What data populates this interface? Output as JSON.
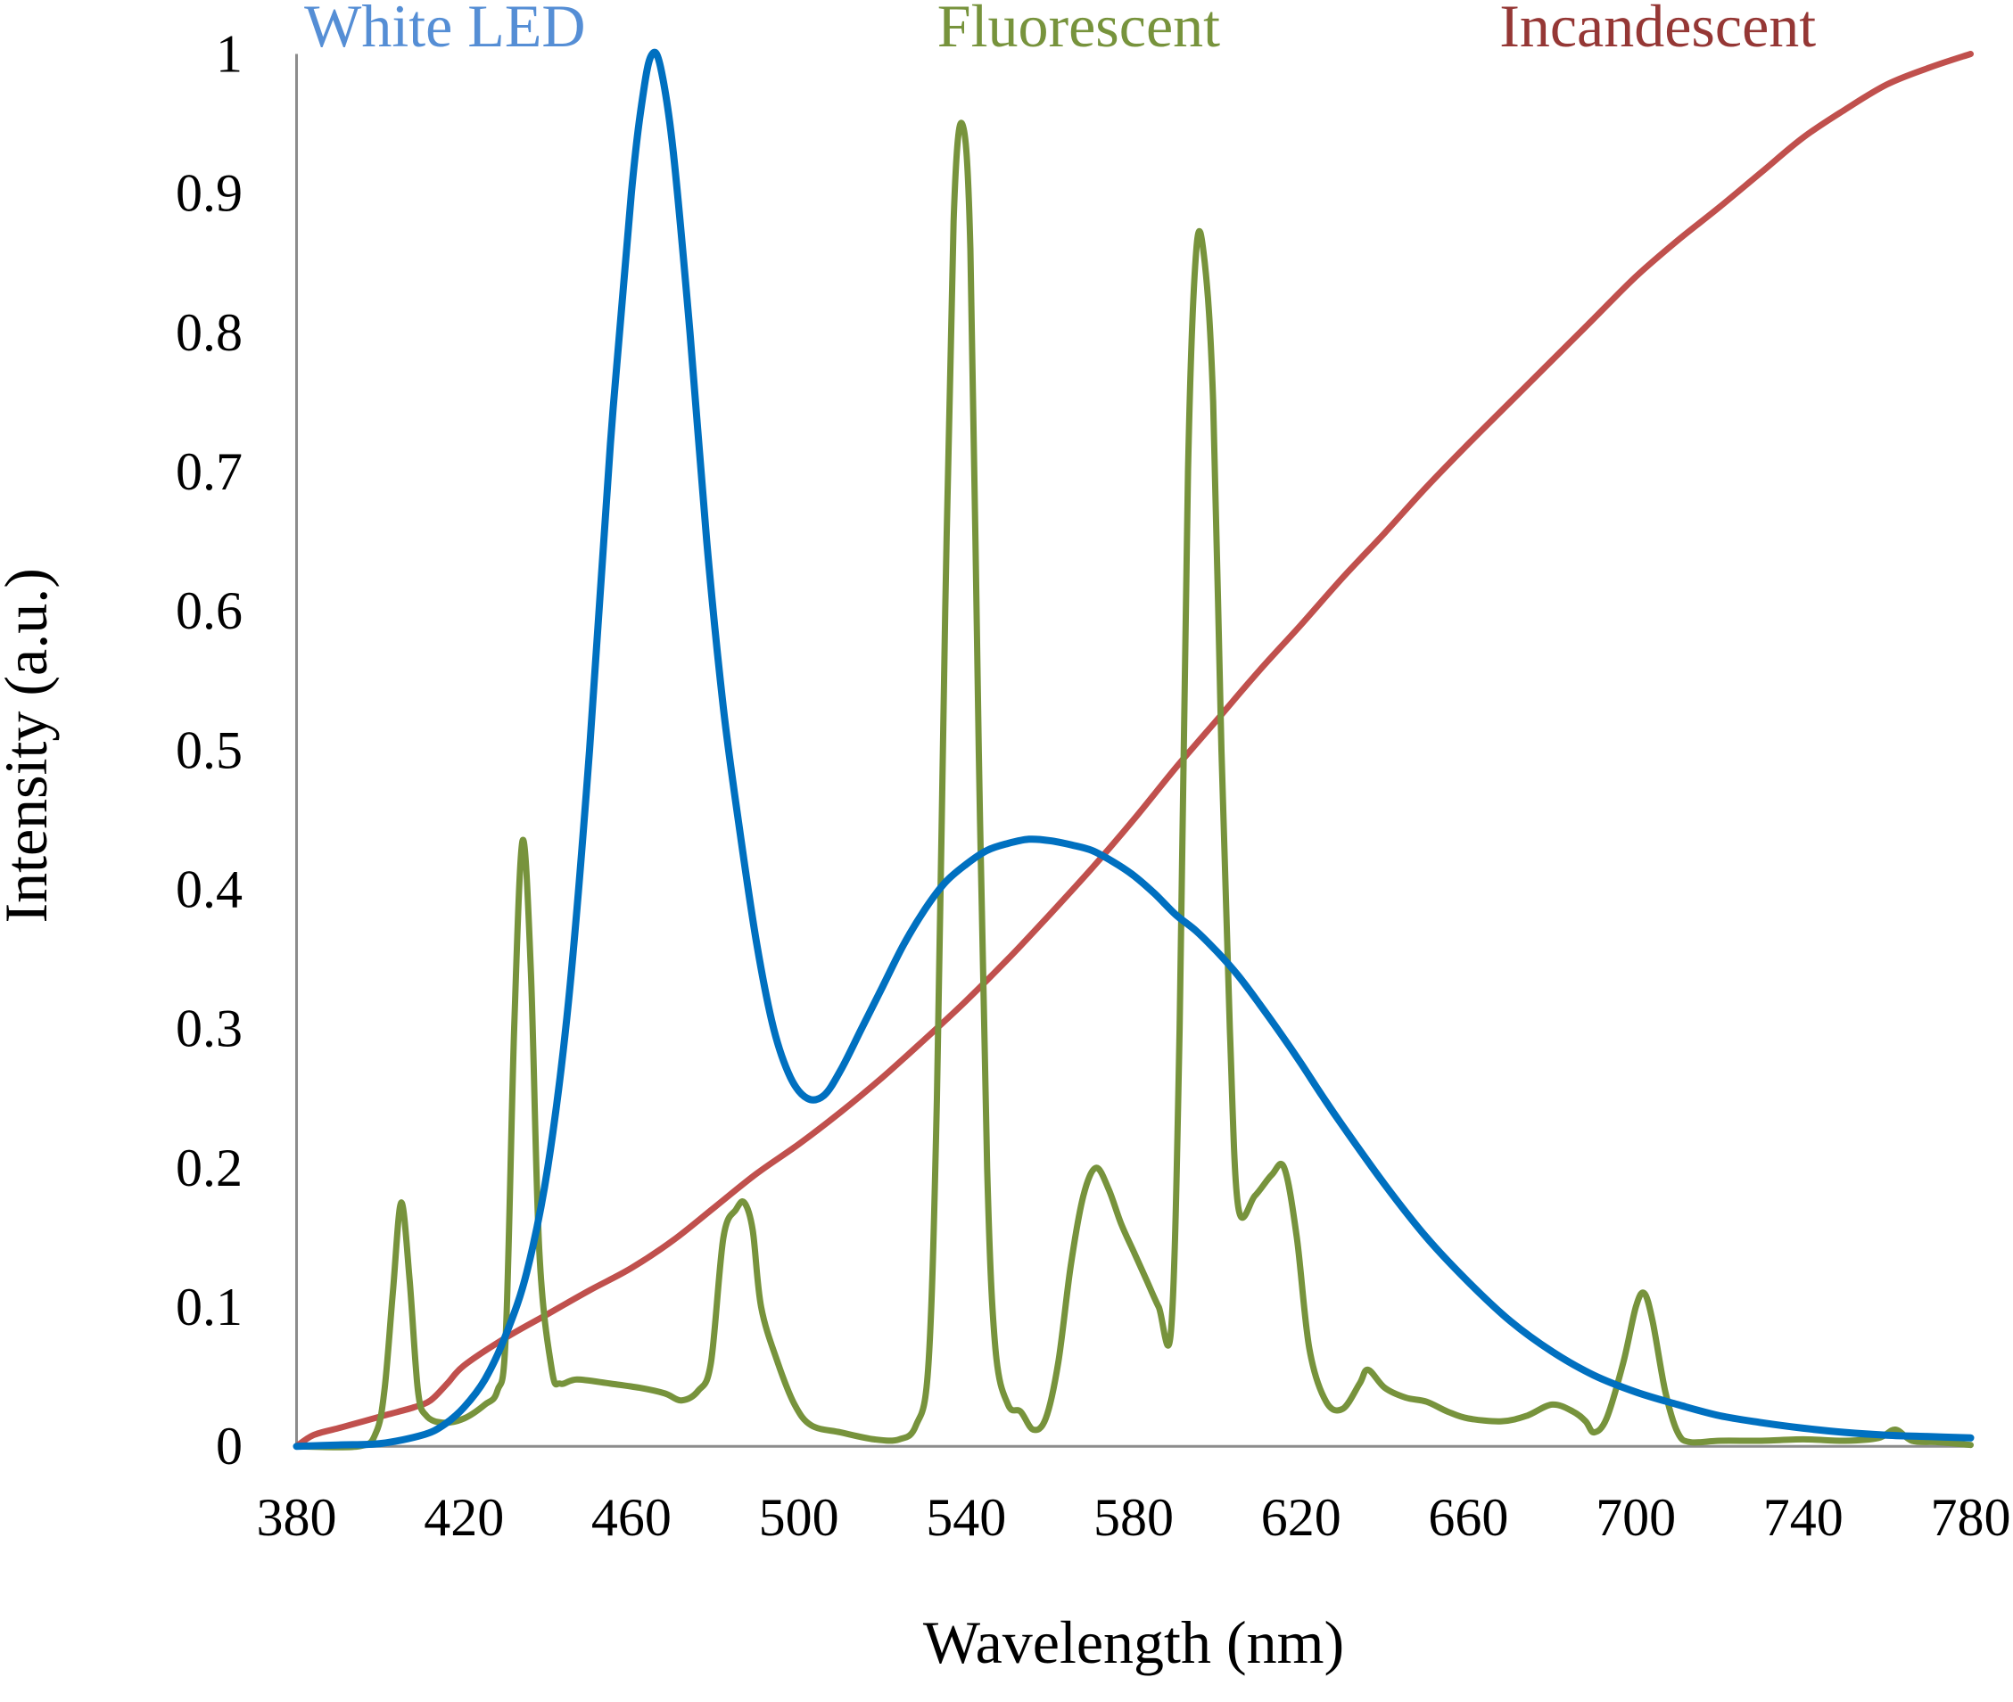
{
  "chart_data": {
    "type": "line",
    "title": "",
    "xlabel": "Wavelength (nm)",
    "ylabel": "Intensity (a.u.)",
    "xlim": [
      380,
      780
    ],
    "ylim": [
      0,
      1
    ],
    "x_ticks": [
      "380",
      "420",
      "460",
      "500",
      "540",
      "580",
      "620",
      "660",
      "700",
      "740",
      "780"
    ],
    "y_ticks": [
      "0",
      "0.1",
      "0.2",
      "0.3",
      "0.4",
      "0.5",
      "0.6",
      "0.7",
      "0.8",
      "0.9",
      "1"
    ],
    "grid": false,
    "legend_placement": "top (inline labels above plot)",
    "series": [
      {
        "name": "White LED",
        "color": "#0070C0",
        "label_color": "#558ED5",
        "points": [
          [
            380,
            0
          ],
          [
            390,
            0.001
          ],
          [
            400,
            0.002
          ],
          [
            410,
            0.008
          ],
          [
            415,
            0.015
          ],
          [
            420,
            0.028
          ],
          [
            425,
            0.048
          ],
          [
            430,
            0.08
          ],
          [
            435,
            0.125
          ],
          [
            440,
            0.2
          ],
          [
            445,
            0.32
          ],
          [
            450,
            0.5
          ],
          [
            455,
            0.72
          ],
          [
            460,
            0.9
          ],
          [
            463,
            0.975
          ],
          [
            465,
            1.0
          ],
          [
            467,
            0.99
          ],
          [
            470,
            0.93
          ],
          [
            474,
            0.8
          ],
          [
            478,
            0.65
          ],
          [
            482,
            0.53
          ],
          [
            486,
            0.44
          ],
          [
            490,
            0.36
          ],
          [
            494,
            0.3
          ],
          [
            498,
            0.265
          ],
          [
            502,
            0.25
          ],
          [
            506,
            0.252
          ],
          [
            510,
            0.27
          ],
          [
            515,
            0.3
          ],
          [
            520,
            0.33
          ],
          [
            525,
            0.36
          ],
          [
            530,
            0.385
          ],
          [
            535,
            0.405
          ],
          [
            540,
            0.418
          ],
          [
            545,
            0.428
          ],
          [
            550,
            0.433
          ],
          [
            555,
            0.436
          ],
          [
            560,
            0.435
          ],
          [
            565,
            0.432
          ],
          [
            570,
            0.428
          ],
          [
            575,
            0.42
          ],
          [
            580,
            0.41
          ],
          [
            585,
            0.397
          ],
          [
            590,
            0.382
          ],
          [
            595,
            0.37
          ],
          [
            600,
            0.355
          ],
          [
            605,
            0.338
          ],
          [
            610,
            0.318
          ],
          [
            615,
            0.297
          ],
          [
            620,
            0.275
          ],
          [
            625,
            0.252
          ],
          [
            630,
            0.23
          ],
          [
            640,
            0.188
          ],
          [
            650,
            0.15
          ],
          [
            660,
            0.118
          ],
          [
            670,
            0.09
          ],
          [
            680,
            0.068
          ],
          [
            690,
            0.051
          ],
          [
            700,
            0.039
          ],
          [
            710,
            0.03
          ],
          [
            720,
            0.022
          ],
          [
            730,
            0.017
          ],
          [
            740,
            0.013
          ],
          [
            750,
            0.01
          ],
          [
            760,
            0.008
          ],
          [
            770,
            0.007
          ],
          [
            780,
            0.006
          ]
        ]
      },
      {
        "name": "Fluorescent",
        "color": "#77933C",
        "label_color": "#77933C",
        "points": [
          [
            380,
            0
          ],
          [
            395,
            0
          ],
          [
            399,
            0.01
          ],
          [
            401,
            0.04
          ],
          [
            403,
            0.11
          ],
          [
            405,
            0.175
          ],
          [
            407,
            0.12
          ],
          [
            409,
            0.04
          ],
          [
            411,
            0.022
          ],
          [
            415,
            0.017
          ],
          [
            420,
            0.02
          ],
          [
            425,
            0.03
          ],
          [
            428,
            0.04
          ],
          [
            430,
            0.08
          ],
          [
            432,
            0.3
          ],
          [
            434,
            0.435
          ],
          [
            436,
            0.34
          ],
          [
            438,
            0.14
          ],
          [
            441,
            0.055
          ],
          [
            443,
            0.045
          ],
          [
            447,
            0.048
          ],
          [
            455,
            0.045
          ],
          [
            462,
            0.042
          ],
          [
            468,
            0.038
          ],
          [
            472,
            0.033
          ],
          [
            476,
            0.04
          ],
          [
            479,
            0.06
          ],
          [
            482,
            0.15
          ],
          [
            485,
            0.17
          ],
          [
            487,
            0.175
          ],
          [
            489,
            0.155
          ],
          [
            491,
            0.1
          ],
          [
            495,
            0.06
          ],
          [
            499,
            0.03
          ],
          [
            503,
            0.015
          ],
          [
            510,
            0.01
          ],
          [
            518,
            0.005
          ],
          [
            524,
            0.005
          ],
          [
            528,
            0.015
          ],
          [
            531,
            0.06
          ],
          [
            533,
            0.25
          ],
          [
            535,
            0.6
          ],
          [
            537,
            0.88
          ],
          [
            539,
            0.95
          ],
          [
            541,
            0.86
          ],
          [
            543,
            0.5
          ],
          [
            545,
            0.2
          ],
          [
            547,
            0.07
          ],
          [
            550,
            0.03
          ],
          [
            553,
            0.025
          ],
          [
            556,
            0.012
          ],
          [
            559,
            0.02
          ],
          [
            562,
            0.06
          ],
          [
            565,
            0.13
          ],
          [
            568,
            0.18
          ],
          [
            571,
            0.2
          ],
          [
            574,
            0.185
          ],
          [
            577,
            0.16
          ],
          [
            580,
            0.14
          ],
          [
            583,
            0.12
          ],
          [
            586,
            0.1
          ],
          [
            589,
            0.085
          ],
          [
            591,
            0.3
          ],
          [
            593,
            0.7
          ],
          [
            595,
            0.86
          ],
          [
            597,
            0.85
          ],
          [
            599,
            0.75
          ],
          [
            601,
            0.5
          ],
          [
            603,
            0.3
          ],
          [
            605,
            0.172
          ],
          [
            609,
            0.18
          ],
          [
            613,
            0.195
          ],
          [
            616,
            0.2
          ],
          [
            619,
            0.15
          ],
          [
            622,
            0.07
          ],
          [
            626,
            0.032
          ],
          [
            630,
            0.027
          ],
          [
            634,
            0.045
          ],
          [
            636,
            0.055
          ],
          [
            640,
            0.042
          ],
          [
            645,
            0.035
          ],
          [
            650,
            0.032
          ],
          [
            655,
            0.025
          ],
          [
            660,
            0.02
          ],
          [
            668,
            0.018
          ],
          [
            674,
            0.022
          ],
          [
            680,
            0.03
          ],
          [
            685,
            0.025
          ],
          [
            688,
            0.018
          ],
          [
            690,
            0.01
          ],
          [
            693,
            0.02
          ],
          [
            697,
            0.06
          ],
          [
            700,
            0.1
          ],
          [
            702,
            0.11
          ],
          [
            704,
            0.09
          ],
          [
            707,
            0.04
          ],
          [
            710,
            0.01
          ],
          [
            713,
            0.003
          ],
          [
            720,
            0.004
          ],
          [
            730,
            0.004
          ],
          [
            740,
            0.005
          ],
          [
            750,
            0.004
          ],
          [
            758,
            0.006
          ],
          [
            762,
            0.012
          ],
          [
            766,
            0.004
          ],
          [
            772,
            0.003
          ],
          [
            780,
            0.001
          ]
        ]
      },
      {
        "name": "Incandescent",
        "color": "#C0504D",
        "label_color": "#953735",
        "points": [
          [
            380,
            0
          ],
          [
            384,
            0.008
          ],
          [
            390,
            0.013
          ],
          [
            396,
            0.018
          ],
          [
            402,
            0.023
          ],
          [
            408,
            0.028
          ],
          [
            412,
            0.033
          ],
          [
            416,
            0.045
          ],
          [
            420,
            0.058
          ],
          [
            430,
            0.078
          ],
          [
            440,
            0.095
          ],
          [
            450,
            0.112
          ],
          [
            460,
            0.128
          ],
          [
            470,
            0.148
          ],
          [
            480,
            0.172
          ],
          [
            490,
            0.196
          ],
          [
            500,
            0.217
          ],
          [
            510,
            0.24
          ],
          [
            520,
            0.265
          ],
          [
            530,
            0.292
          ],
          [
            540,
            0.32
          ],
          [
            550,
            0.35
          ],
          [
            560,
            0.382
          ],
          [
            570,
            0.415
          ],
          [
            580,
            0.45
          ],
          [
            590,
            0.487
          ],
          [
            600,
            0.522
          ],
          [
            610,
            0.557
          ],
          [
            620,
            0.59
          ],
          [
            630,
            0.624
          ],
          [
            640,
            0.656
          ],
          [
            650,
            0.689
          ],
          [
            660,
            0.72
          ],
          [
            670,
            0.75
          ],
          [
            680,
            0.78
          ],
          [
            690,
            0.81
          ],
          [
            700,
            0.84
          ],
          [
            710,
            0.866
          ],
          [
            720,
            0.89
          ],
          [
            730,
            0.915
          ],
          [
            740,
            0.94
          ],
          [
            750,
            0.96
          ],
          [
            760,
            0.978
          ],
          [
            770,
            0.99
          ],
          [
            780,
            1.0
          ]
        ]
      }
    ]
  }
}
